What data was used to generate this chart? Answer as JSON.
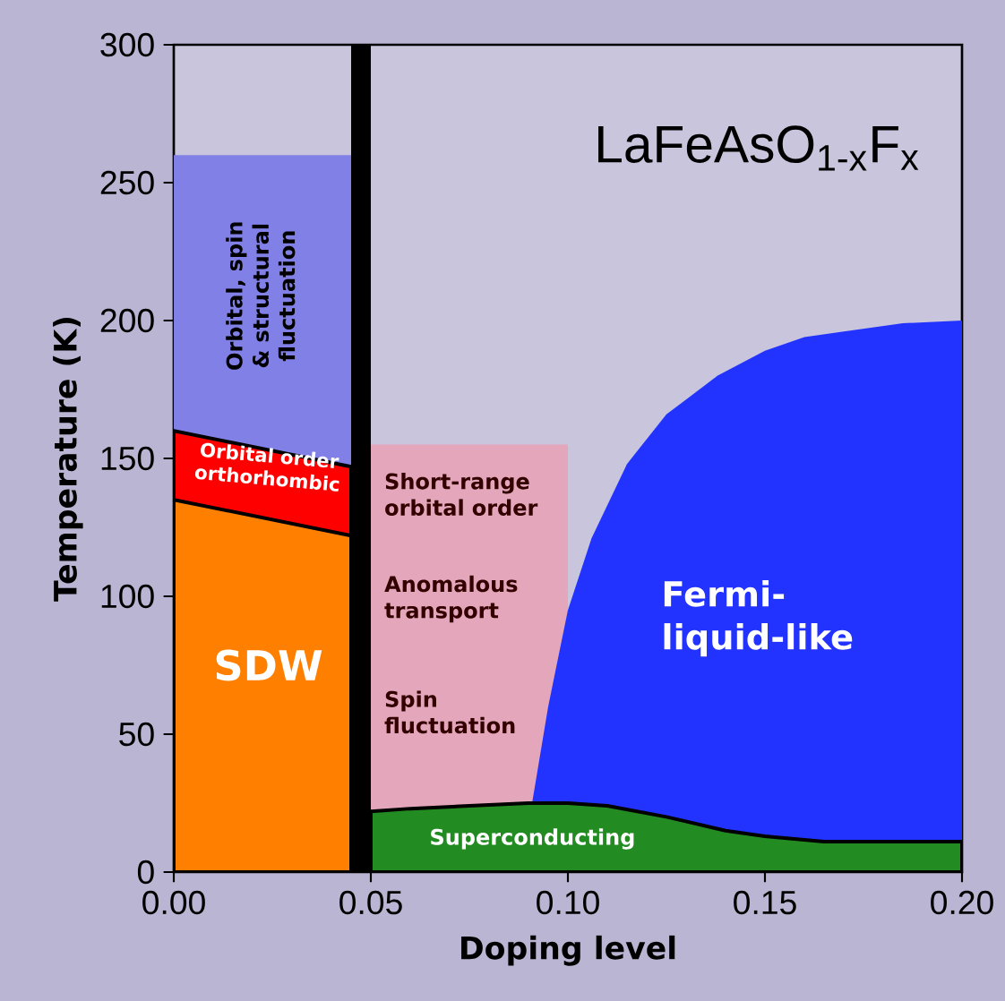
{
  "chart_data": {
    "type": "area",
    "title": "LaFeAsO$_{1-x}$F$_{x}$",
    "xlabel": "Doping level",
    "ylabel": "Temperature (K)",
    "xlim": [
      0,
      0.2
    ],
    "ylim": [
      0,
      300
    ],
    "xticks": [
      {
        "value": 0,
        "label": "0.00"
      },
      {
        "value": 0.05,
        "label": "0.05"
      },
      {
        "value": 0.1,
        "label": "0.10"
      },
      {
        "value": 0.15,
        "label": "0.15"
      },
      {
        "value": 0.2,
        "label": "0.20"
      }
    ],
    "yticks": [
      0,
      50,
      100,
      150,
      200,
      250,
      300
    ],
    "series": [
      {
        "color": "#8080e6",
        "x": [
          0,
          0.045
        ],
        "values": [
          260,
          260
        ]
      },
      {
        "color": "#ff0000",
        "x": [
          0,
          0.045
        ],
        "values": [
          160,
          147
        ]
      },
      {
        "color": "#ff8000",
        "x": [
          0,
          0.045
        ],
        "values": [
          135,
          122
        ]
      },
      {
        "color": "#e3a6bb",
        "x": [
          0.05,
          0.1
        ],
        "values": [
          155,
          155
        ]
      },
      {
        "color": "#2233ff",
        "x": [
          0.088,
          0.095,
          0.1,
          0.106,
          0.115,
          0.125,
          0.138,
          0.15,
          0.16,
          0.17,
          0.185,
          0.2
        ],
        "values": [
          0,
          60,
          95,
          121,
          148,
          166,
          180,
          189,
          194,
          196,
          199,
          200
        ]
      },
      {
        "color": "#228b22",
        "x": [
          0.05,
          0.06,
          0.075,
          0.09,
          0.1,
          0.11,
          0.125,
          0.14,
          0.15,
          0.165,
          0.175,
          0.2
        ],
        "values": [
          22,
          23,
          24,
          25,
          25,
          24,
          20,
          15,
          13,
          11,
          11,
          11
        ]
      }
    ],
    "bands": [
      {
        "axis": "x",
        "from": 0.045,
        "to": 0.05,
        "color": "#000000"
      }
    ],
    "annotations": [
      "Orbital, spin & structural fluctuation",
      "Orbital order orthorhombic",
      "SDW",
      "Short-range orbital order",
      "Anomalous transport",
      "Spin fluctuation",
      "Fermi-liquid-like",
      "Superconducting"
    ]
  }
}
